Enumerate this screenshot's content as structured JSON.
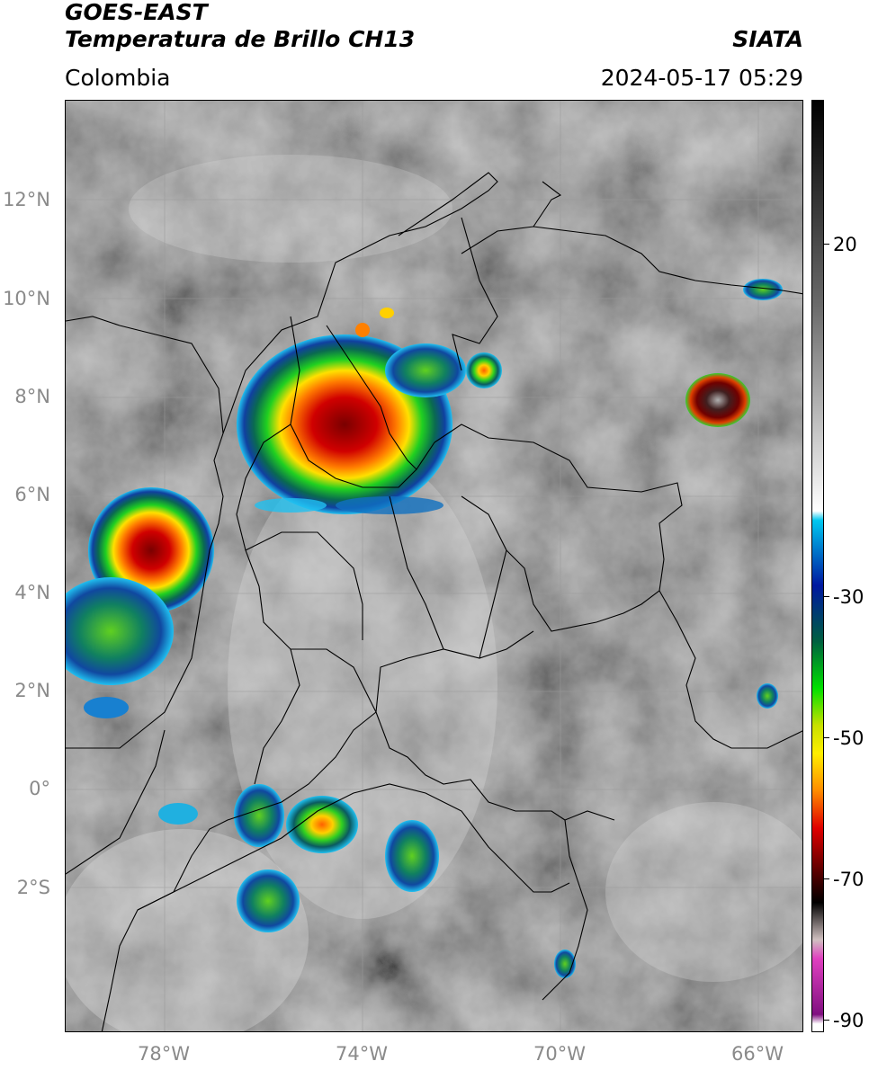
{
  "header": {
    "title_line1": "GOES-EAST",
    "title_line2": "Temperatura de Brillo CH13",
    "brand": "SIATA",
    "region": "Colombia",
    "timestamp": "2024-05-17 05:29"
  },
  "axes": {
    "lat_labels": [
      "12°N",
      "10°N",
      "8°N",
      "6°N",
      "4°N",
      "2°N",
      "0°",
      "2°S"
    ],
    "lon_labels": [
      "78°W",
      "74°W",
      "70°W",
      "66°W"
    ]
  },
  "colorbar": {
    "labels": [
      "20",
      "-30",
      "-50",
      "-70",
      "-90"
    ],
    "colors": {
      "cyan": "#00c8f0",
      "blue": "#0018a0",
      "green": "#00e000",
      "yellow": "#ffee00",
      "orange": "#ff8c00",
      "red": "#e00000",
      "darkred": "#500000",
      "magenta": "#e040c0",
      "purple": "#801080"
    }
  }
}
